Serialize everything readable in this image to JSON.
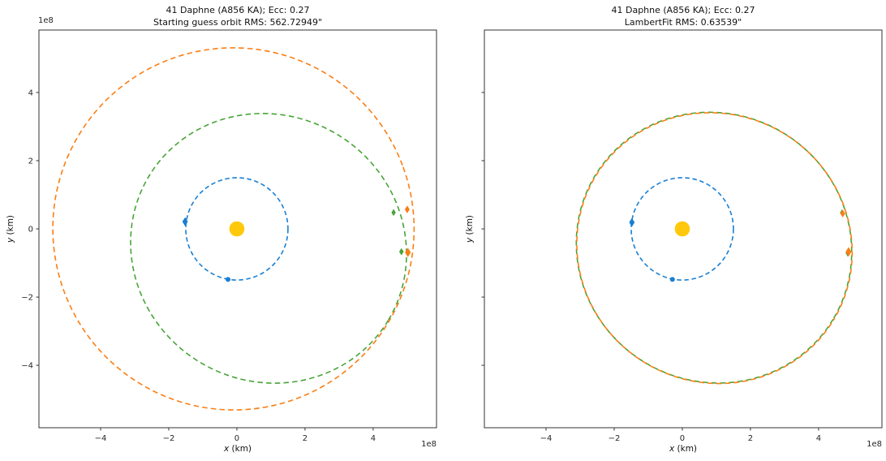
{
  "figure": {
    "object": "41 Daphne",
    "designation": "A856 KA",
    "eccentricity": "0.27",
    "colors": {
      "blue": "#1a7fd1",
      "orange": "#fb7e14",
      "green": "#46a436",
      "sun": "#ffc80a",
      "spine": "#333333",
      "tick_text": "#262626"
    }
  },
  "chart_data": {
    "type": "line",
    "units": "1e8 km",
    "plots": [
      {
        "title_line1": "41 Daphne (A856 KA); Ecc: 0.27",
        "title_line2": "Starting guess orbit RMS: 562.72949\"",
        "xlabel_var": "x",
        "xlabel_unit": " (km)",
        "ylabel_var": "y",
        "ylabel_unit": " (km)",
        "offset_text": "1e8",
        "xlim": [
          -5.81,
          5.86
        ],
        "ylim": [
          -5.83,
          5.83
        ],
        "xticks": [
          -4,
          -2,
          0,
          2,
          4
        ],
        "yticks": [
          4,
          2,
          0,
          -2,
          -4
        ],
        "show_ytick_labels": true,
        "grid": false,
        "legend": "none",
        "series": [
          {
            "name": "earth-orbit",
            "color": "blue",
            "cx": 0,
            "cy": 0,
            "rx": 1.5,
            "ry": 1.5,
            "rot": 0,
            "dash": "5.5 3.6",
            "dashoffset": 0
          },
          {
            "name": "true-orbit",
            "color": "green",
            "cx": 0.93,
            "cy": -0.57,
            "rx": 4.1,
            "ry": 3.9,
            "rot": 31,
            "dash": "6.5 4.2",
            "dashoffset": 0
          },
          {
            "name": "guess-orbit",
            "color": "orange",
            "cx": -0.1,
            "cy": 0.0,
            "rx": 5.3,
            "ry": 5.31,
            "rot": -20,
            "dash": "6.5 4.2",
            "dashoffset": 0
          }
        ],
        "sun": {
          "x": 0,
          "y": 0
        },
        "markers": [
          {
            "name": "earth-obs-1",
            "kind": "diamond",
            "color": "blue",
            "x": -1.52,
            "y": 0.21,
            "size": 5.5
          },
          {
            "name": "earth-obs-2",
            "kind": "dot",
            "color": "blue",
            "x": -0.26,
            "y": -1.48,
            "size": 3.0
          },
          {
            "name": "true-pos-1",
            "kind": "diamond",
            "color": "green",
            "x": 4.6,
            "y": 0.48,
            "size": 4.3
          },
          {
            "name": "true-pos-2",
            "kind": "diamond",
            "color": "green",
            "x": 4.83,
            "y": -0.67,
            "size": 4.5
          },
          {
            "name": "guess-pos-1",
            "kind": "diamond",
            "color": "orange",
            "x": 5.0,
            "y": 0.57,
            "size": 4.8
          },
          {
            "name": "guess-pos-2",
            "kind": "diamond",
            "color": "orange",
            "x": 5.02,
            "y": -0.69,
            "size": 5.8
          }
        ]
      },
      {
        "title_line1": "41 Daphne (A856 KA); Ecc: 0.27",
        "title_line2": "LambertFit RMS: 0.63539\"",
        "xlabel_var": "x",
        "xlabel_unit": " (km)",
        "ylabel_var": "y",
        "ylabel_unit": " (km)",
        "offset_text": "1e8",
        "xlim": [
          -5.81,
          5.86
        ],
        "ylim": [
          -5.83,
          5.83
        ],
        "xticks": [
          -4,
          -2,
          0,
          2,
          4
        ],
        "yticks": [
          4,
          2,
          0,
          -2,
          -4
        ],
        "show_ytick_labels": false,
        "grid": false,
        "legend": "none",
        "series": [
          {
            "name": "earth-orbit",
            "color": "blue",
            "cx": 0,
            "cy": 0,
            "rx": 1.5,
            "ry": 1.5,
            "rot": 0,
            "dash": "5.5 3.6",
            "dashoffset": 0
          },
          {
            "name": "true-orbit",
            "color": "green",
            "cx": 0.93,
            "cy": -0.55,
            "rx": 4.08,
            "ry": 3.93,
            "rot": 31,
            "dash": "6.5 4.2",
            "dashoffset": 0
          },
          {
            "name": "fitted-orbit",
            "color": "orange",
            "cx": 0.945,
            "cy": -0.565,
            "rx": 4.08,
            "ry": 3.93,
            "rot": 31,
            "dash": "6.5 4.2",
            "dashoffset": 5.4
          }
        ],
        "sun": {
          "x": 0,
          "y": 0
        },
        "markers": [
          {
            "name": "earth-obs-1",
            "kind": "diamond",
            "color": "blue",
            "x": -1.48,
            "y": 0.19,
            "size": 5.5
          },
          {
            "name": "earth-obs-2",
            "kind": "dot",
            "color": "blue",
            "x": -0.29,
            "y": -1.48,
            "size": 3.0
          },
          {
            "name": "true-pos-1",
            "kind": "diamond",
            "color": "green",
            "x": 4.69,
            "y": 0.47,
            "size": 4.3
          },
          {
            "name": "true-pos-2",
            "kind": "diamond",
            "color": "green",
            "x": 4.86,
            "y": -0.71,
            "size": 4.5
          },
          {
            "name": "fit-pos-1",
            "kind": "diamond",
            "color": "orange",
            "x": 4.71,
            "y": 0.45,
            "size": 4.8
          },
          {
            "name": "fit-pos-2",
            "kind": "diamond",
            "color": "orange",
            "x": 4.88,
            "y": -0.67,
            "size": 5.8
          }
        ]
      }
    ]
  }
}
